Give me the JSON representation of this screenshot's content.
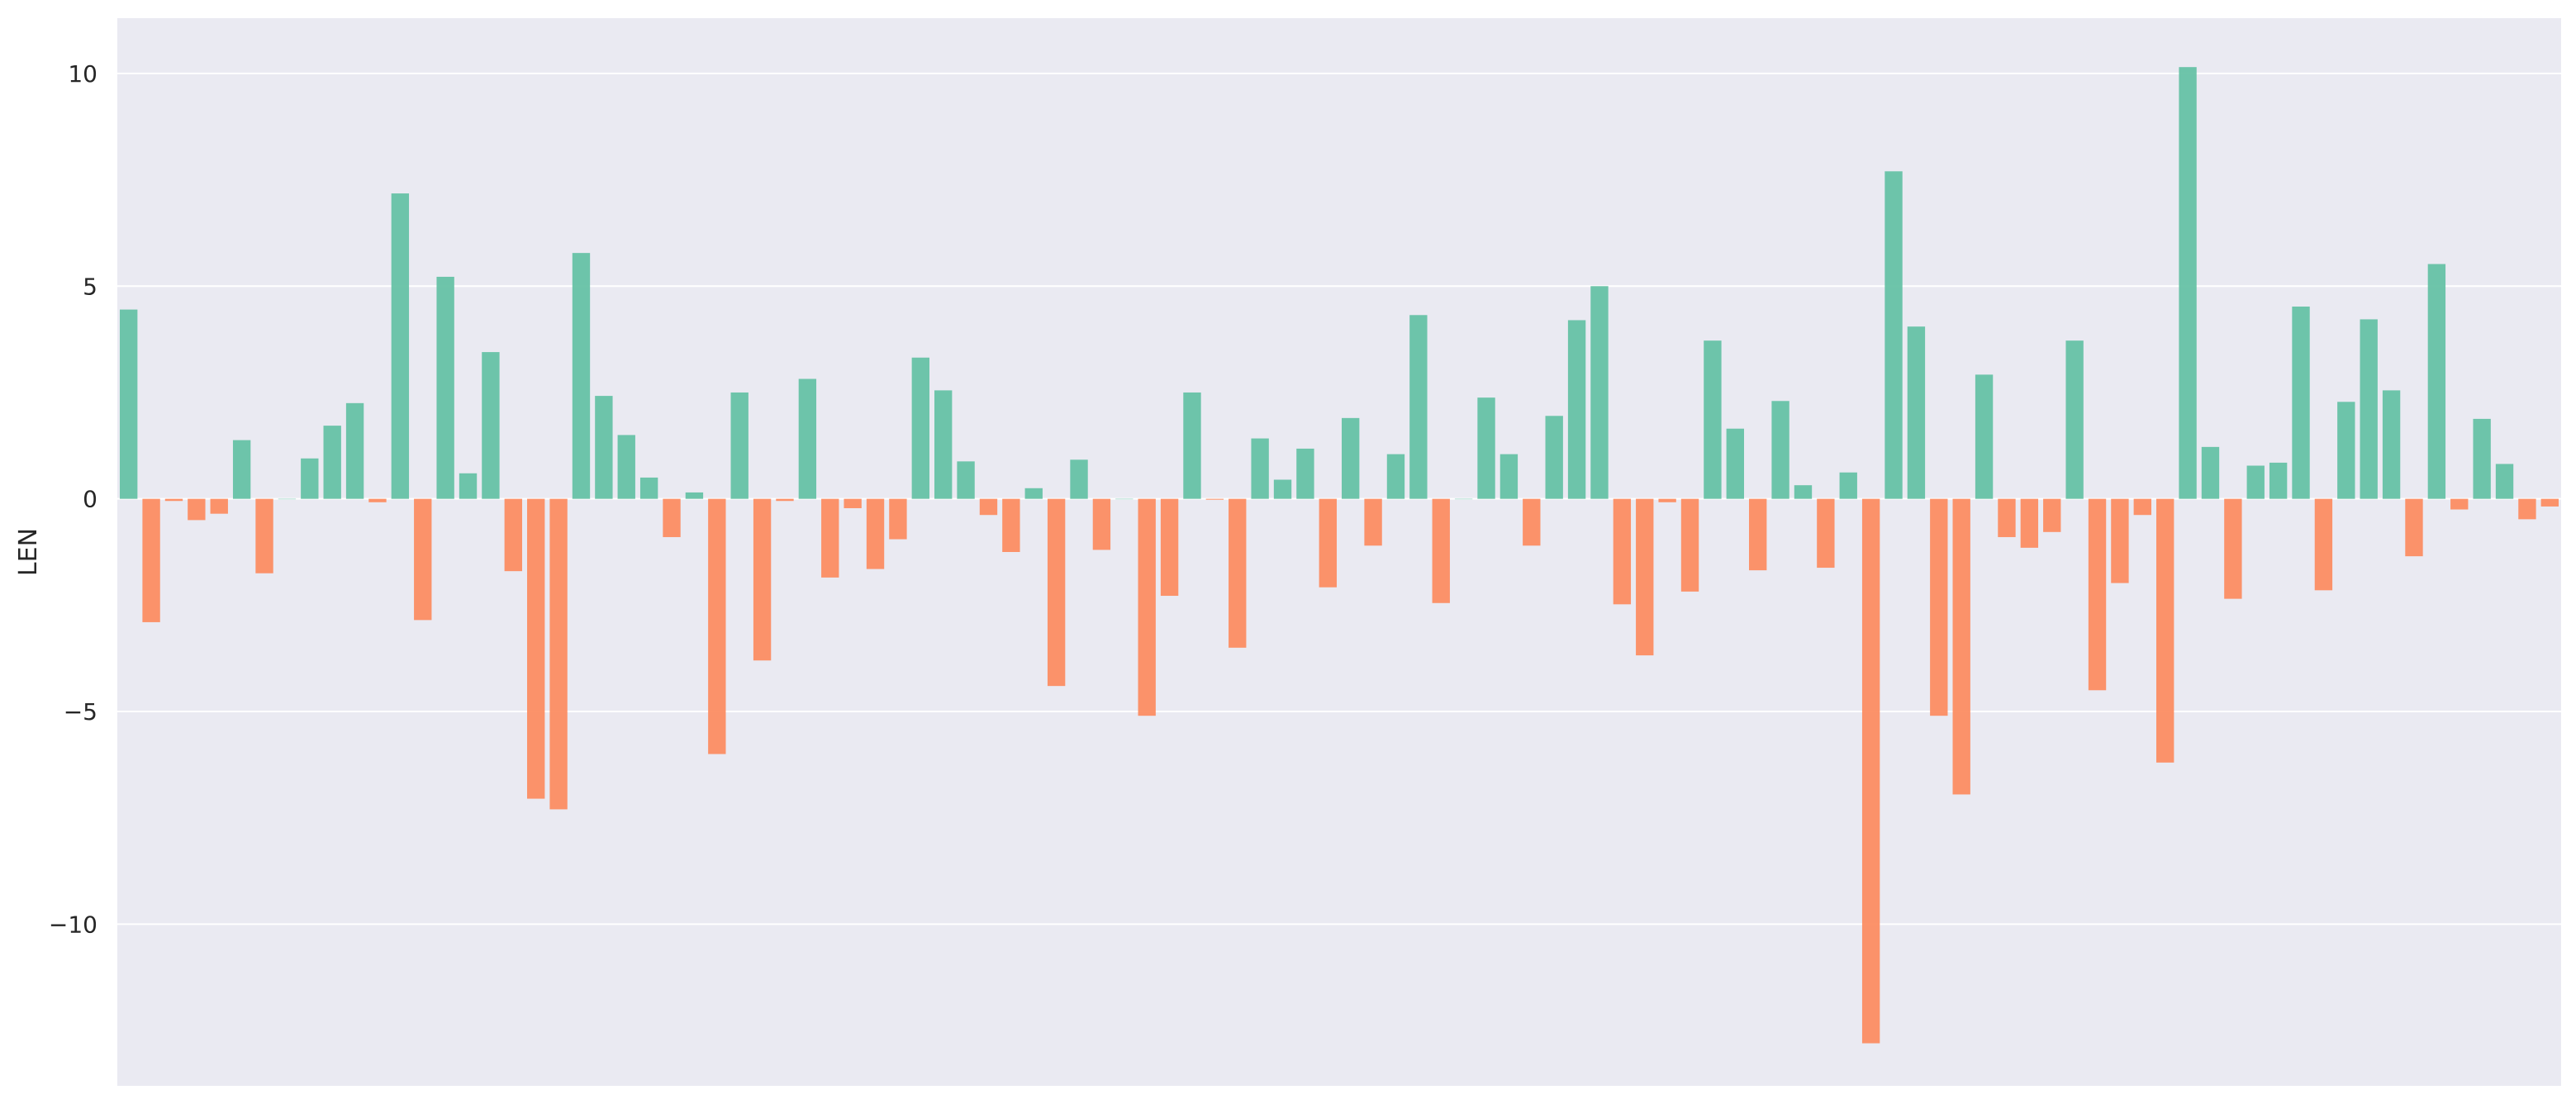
{
  "chart_data": {
    "type": "bar",
    "title": "",
    "xlabel": "",
    "ylabel": "LEN",
    "ylim": [
      -13.8,
      11.3
    ],
    "yticks": [
      10,
      5,
      0,
      -5,
      -10
    ],
    "ytick_labels": [
      "10",
      "5",
      "0",
      "−5",
      "−10"
    ],
    "grid": true,
    "legend": "none",
    "colors": {
      "positive": "#66c2a5",
      "negative": "#fc8d62",
      "background": "#eaeaf2",
      "grid": "#ffffff"
    },
    "values": [
      4.45,
      -2.9,
      -0.05,
      -0.5,
      -0.35,
      1.38,
      -1.75,
      0,
      0.95,
      1.72,
      2.25,
      -0.08,
      7.18,
      -2.85,
      5.22,
      0.6,
      3.45,
      -1.7,
      -7.05,
      -7.3,
      5.78,
      2.42,
      1.5,
      0.5,
      -0.9,
      0.15,
      -6.0,
      2.5,
      -3.8,
      -0.05,
      2.82,
      -1.85,
      -0.22,
      -1.65,
      -0.95,
      3.32,
      2.55,
      0.88,
      -0.38,
      -1.25,
      0.25,
      -4.4,
      0.92,
      -1.2,
      0,
      -5.1,
      -2.28,
      2.5,
      -0.02,
      -3.5,
      1.42,
      0.45,
      1.18,
      -2.08,
      1.9,
      -1.1,
      1.05,
      4.32,
      -2.45,
      0,
      2.38,
      1.05,
      -1.1,
      1.95,
      4.2,
      5.0,
      -2.48,
      -3.68,
      -0.08,
      -2.18,
      3.72,
      1.65,
      -1.68,
      2.3,
      0.32,
      -1.62,
      0.62,
      -12.8,
      7.7,
      4.05,
      -5.1,
      -6.95,
      2.92,
      -0.9,
      -1.15,
      -0.78,
      3.72,
      -4.5,
      -1.98,
      -0.38,
      -6.2,
      10.15,
      1.22,
      -2.35,
      0.78,
      0.85,
      4.52,
      -2.15,
      2.28,
      4.22,
      2.55,
      -1.35,
      5.52,
      -0.25,
      1.88,
      0.82,
      -0.48,
      -0.18
    ]
  }
}
